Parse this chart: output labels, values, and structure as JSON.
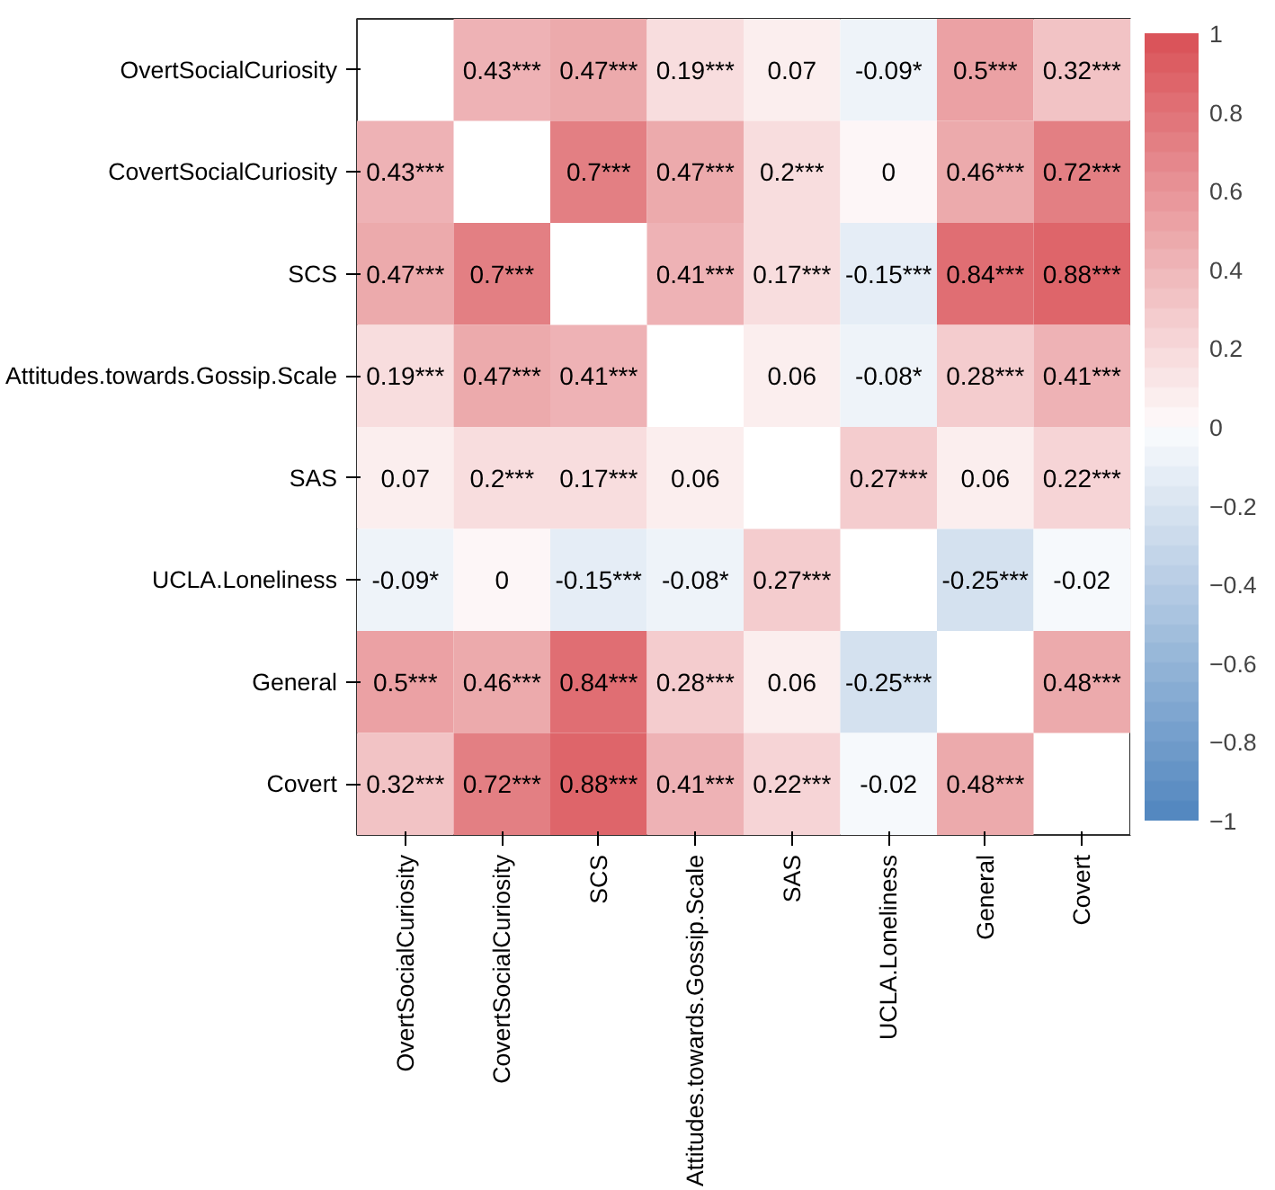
{
  "chart_data": {
    "type": "heatmap",
    "categories": [
      "OvertSocialCuriosity",
      "CovertSocialCuriosity",
      "SCS",
      "Attitudes.towards.Gossip.Scale",
      "SAS",
      "UCLA.Loneliness",
      "General",
      "Covert"
    ],
    "y_categories": [
      "OvertSocialCuriosity",
      "CovertSocialCuriosity",
      "SCS",
      "Attitudes.towards.Gossip.Scale",
      "SAS",
      "UCLA.Loneliness",
      "General",
      "Covert"
    ],
    "cells": [
      [
        null,
        0.43,
        0.47,
        0.19,
        0.07,
        -0.09,
        0.5,
        0.32
      ],
      [
        0.43,
        null,
        0.7,
        0.47,
        0.2,
        0,
        0.46,
        0.72
      ],
      [
        0.47,
        0.7,
        null,
        0.41,
        0.17,
        -0.15,
        0.84,
        0.88
      ],
      [
        0.19,
        0.47,
        0.41,
        null,
        0.06,
        -0.08,
        0.28,
        0.41
      ],
      [
        0.07,
        0.2,
        0.17,
        0.06,
        null,
        0.27,
        0.06,
        0.22
      ],
      [
        -0.09,
        0,
        -0.15,
        -0.08,
        0.27,
        null,
        -0.25,
        -0.02
      ],
      [
        0.5,
        0.46,
        0.84,
        0.28,
        0.06,
        -0.25,
        null,
        0.48
      ],
      [
        0.32,
        0.72,
        0.88,
        0.41,
        0.22,
        -0.02,
        0.48,
        null
      ]
    ],
    "cell_labels": [
      [
        null,
        "0.43***",
        "0.47***",
        "0.19***",
        "0.07",
        "-0.09*",
        "0.5***",
        "0.32***"
      ],
      [
        "0.43***",
        null,
        "0.7***",
        "0.47***",
        "0.2***",
        "0",
        "0.46***",
        "0.72***"
      ],
      [
        "0.47***",
        "0.7***",
        null,
        "0.41***",
        "0.17***",
        "-0.15***",
        "0.84***",
        "0.88***"
      ],
      [
        "0.19***",
        "0.47***",
        "0.41***",
        null,
        "0.06",
        "-0.08*",
        "0.28***",
        "0.41***"
      ],
      [
        "0.07",
        "0.2***",
        "0.17***",
        "0.06",
        null,
        "0.27***",
        "0.06",
        "0.22***"
      ],
      [
        "-0.09*",
        "0",
        "-0.15***",
        "-0.08*",
        "0.27***",
        null,
        "-0.25***",
        "-0.02"
      ],
      [
        "0.5***",
        "0.46***",
        "0.84***",
        "0.28***",
        "0.06",
        "-0.25***",
        null,
        "0.48***"
      ],
      [
        "0.32***",
        "0.72***",
        "0.88***",
        "0.41***",
        "0.22***",
        "-0.02",
        "0.48***",
        null
      ]
    ],
    "clim": [
      -1,
      1
    ],
    "cticks": [
      -1,
      -0.8,
      -0.6,
      -0.4,
      -0.2,
      0,
      0.2,
      0.4,
      0.6,
      0.8,
      1
    ]
  }
}
